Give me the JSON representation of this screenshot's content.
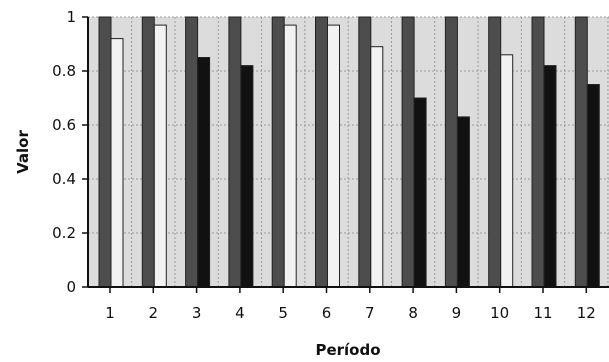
{
  "chart_data": {
    "type": "bar",
    "xlabel": "Período",
    "ylabel": "Valor",
    "ylim": [
      0,
      1
    ],
    "yticks": [
      "0",
      "0.2",
      "0.4",
      "0.6",
      "0.8",
      "1"
    ],
    "grid": true,
    "legend": "none",
    "categories": [
      "1",
      "2",
      "3",
      "4",
      "5",
      "6",
      "7",
      "8",
      "9",
      "10",
      "11",
      "12"
    ],
    "series": [
      {
        "values": [
          1,
          1,
          1,
          1,
          1,
          1,
          1,
          1,
          1,
          1,
          1,
          1
        ],
        "color": "#4d4d4d"
      },
      {
        "values": [
          0.92,
          0.97,
          0.85,
          0.82,
          0.97,
          0.97,
          0.89,
          0.7,
          0.63,
          0.86,
          0.82,
          0.75
        ],
        "colors": [
          "#f2f2f2",
          "#f2f2f2",
          "#111111",
          "#111111",
          "#f2f2f2",
          "#f2f2f2",
          "#f2f2f2",
          "#111111",
          "#111111",
          "#f2f2f2",
          "#111111",
          "#111111"
        ]
      }
    ],
    "plot_background": "#dcdcdc",
    "grid_color": "#9a9a9a"
  }
}
